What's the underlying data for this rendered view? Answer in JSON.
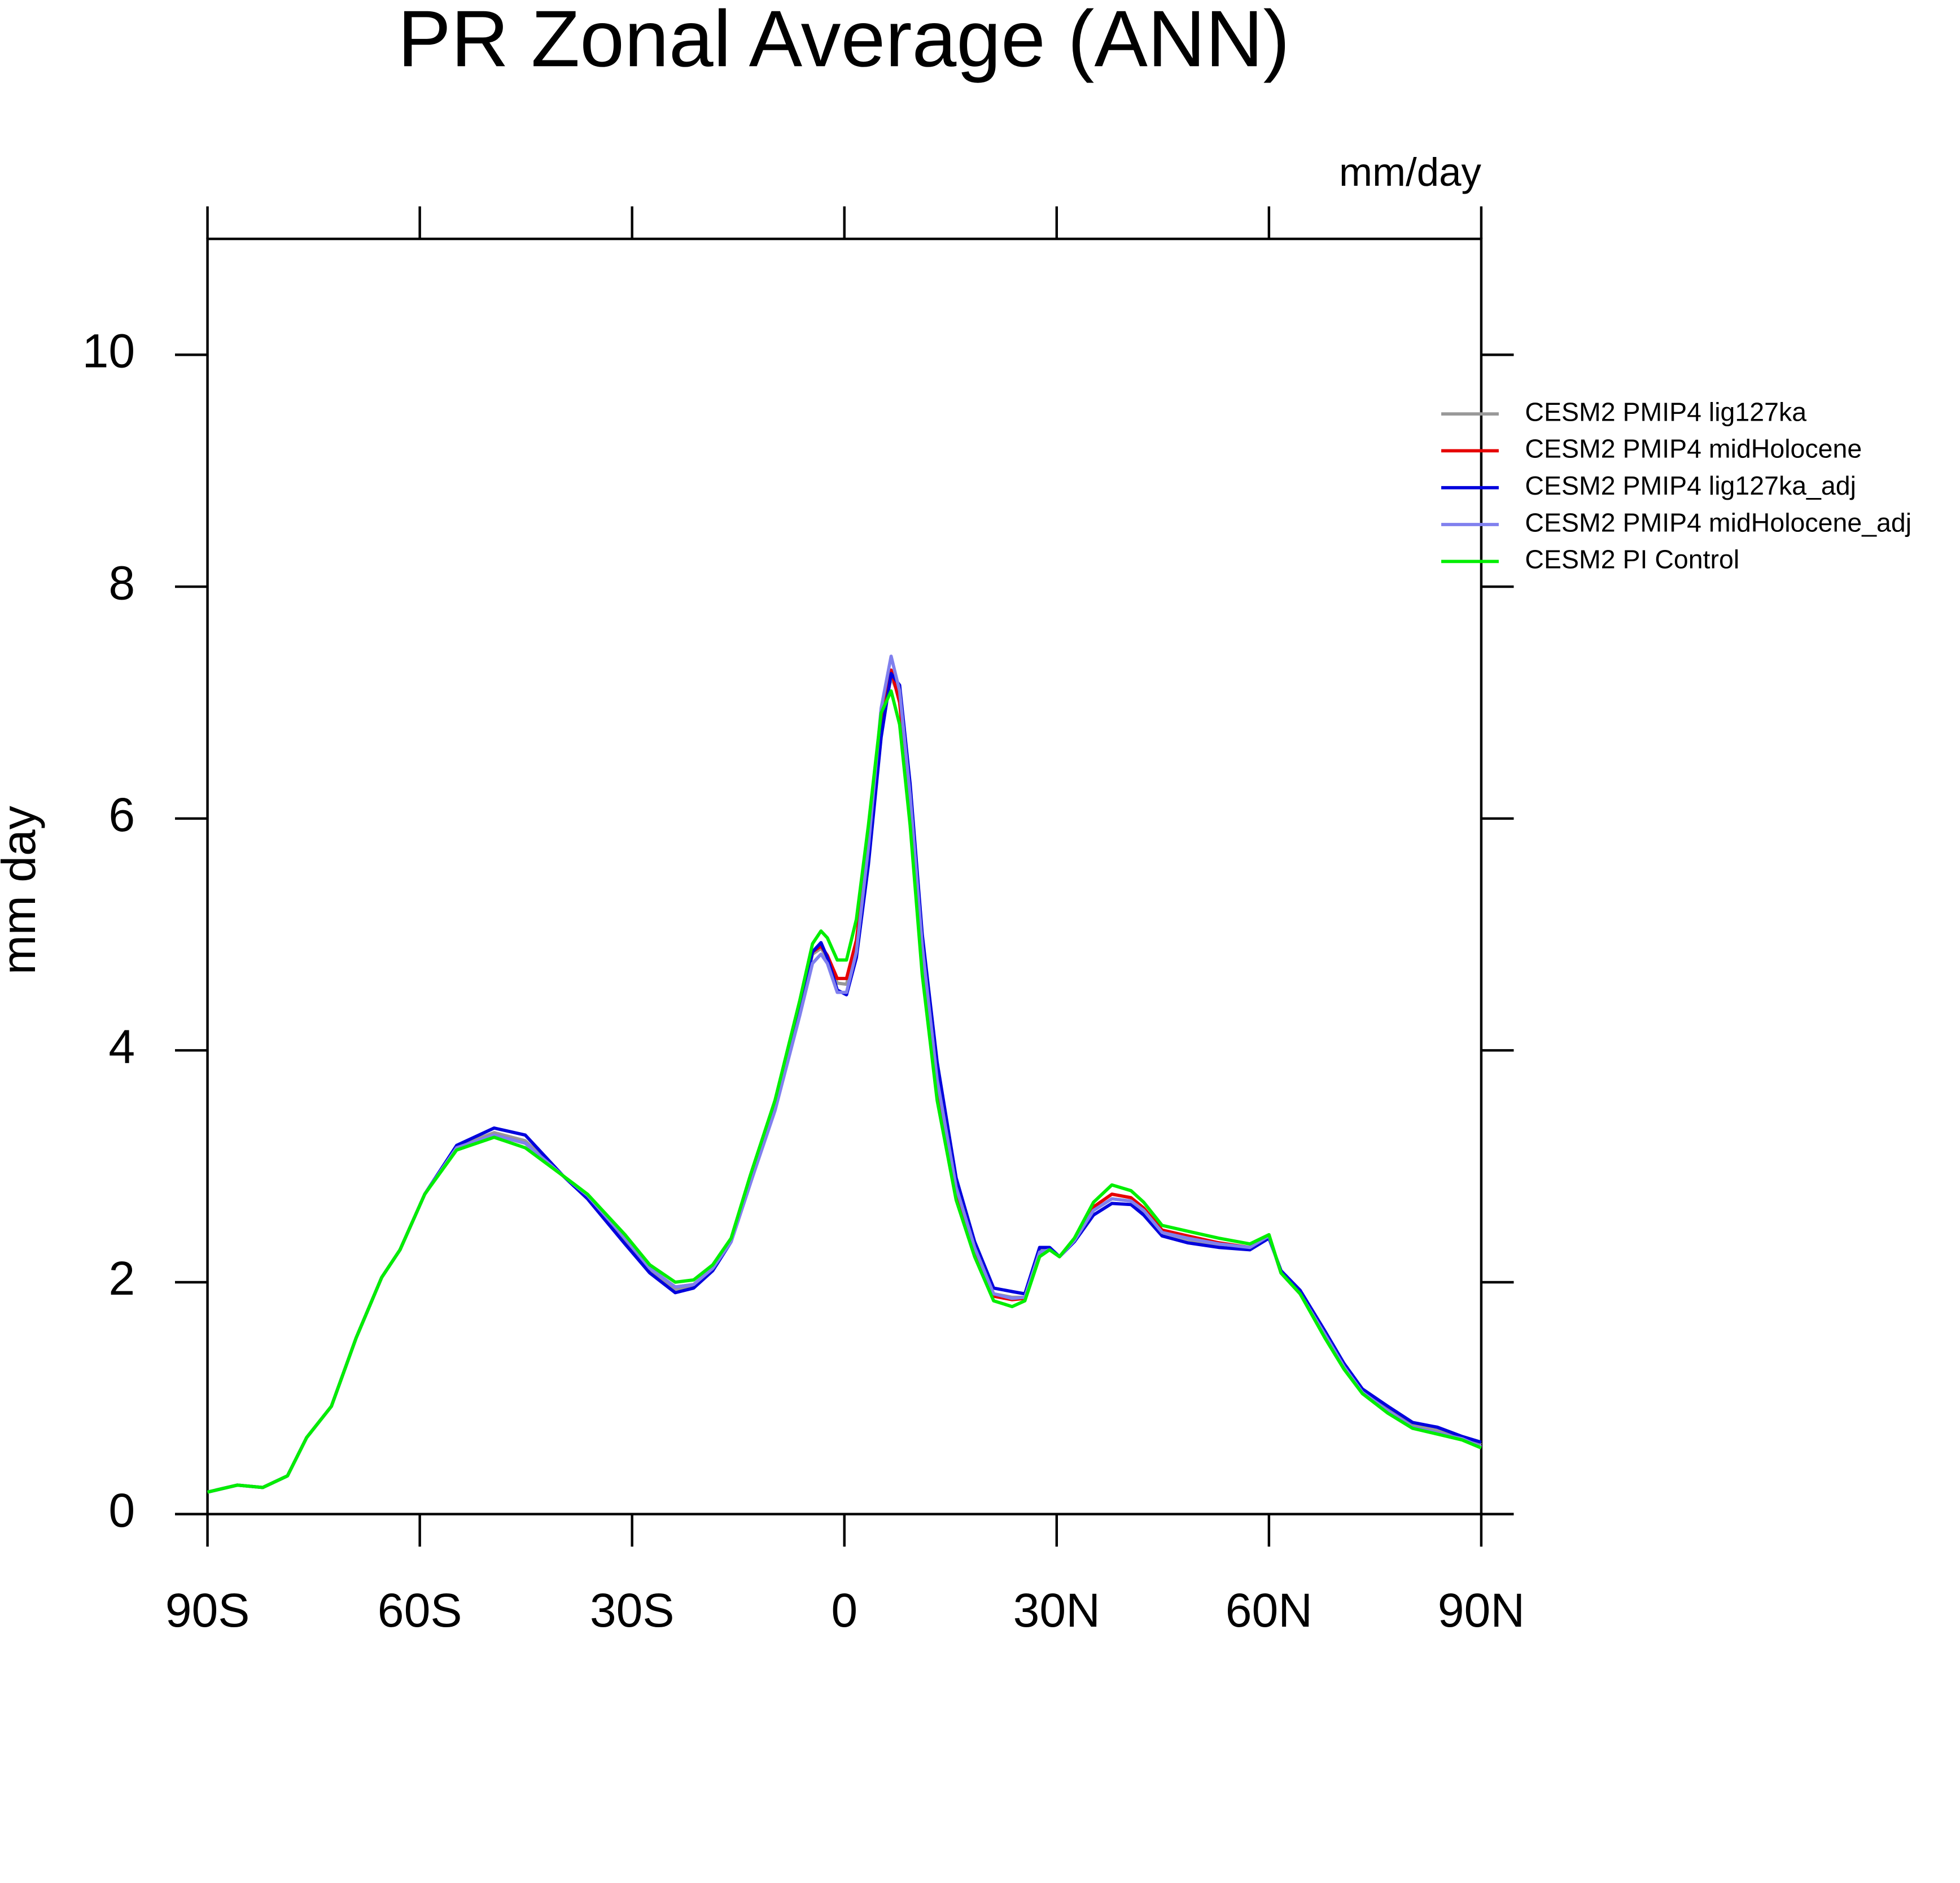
{
  "chart_data": {
    "type": "line",
    "title": "PR Zonal Average (ANN)",
    "units": "mm/day",
    "y_label": "mm day",
    "x": [
      -90,
      -85.8,
      -82.2,
      -78.7,
      -76,
      -72.5,
      -69,
      -65.4,
      -62.8,
      -59.3,
      -54.8,
      -49.5,
      -45.1,
      -39.8,
      -36.3,
      -31,
      -27.5,
      -23.9,
      -21.3,
      -18.6,
      -16,
      -13.3,
      -9.8,
      -6.3,
      -4.5,
      -3.3,
      -2.4,
      -1,
      0.3,
      1.7,
      3.4,
      5.2,
      6.6,
      7.8,
      9.3,
      11,
      13.1,
      15.8,
      18.4,
      21.1,
      23.7,
      25.5,
      27.6,
      29,
      30.4,
      32.5,
      35.2,
      37.8,
      40.5,
      42.3,
      44.9,
      48.5,
      52.9,
      57.3,
      60,
      61.7,
      64.4,
      67.9,
      70.6,
      73.2,
      76.8,
      80.3,
      83.8,
      87.3,
      90
    ],
    "series": [
      {
        "name": "CESM2 PMIP4 lig127ka",
        "color": "#999999",
        "values": [
          0.19,
          0.25,
          0.23,
          0.33,
          0.66,
          0.93,
          1.52,
          2.04,
          2.28,
          2.76,
          3.17,
          3.29,
          3.22,
          2.92,
          2.74,
          2.36,
          2.1,
          1.94,
          1.97,
          2.11,
          2.36,
          2.88,
          3.53,
          4.37,
          4.83,
          4.88,
          4.8,
          4.58,
          4.57,
          4.9,
          5.72,
          6.8,
          7.22,
          7.05,
          6.15,
          4.85,
          3.75,
          2.83,
          2.3,
          1.9,
          1.87,
          1.87,
          2.27,
          2.29,
          2.22,
          2.36,
          2.62,
          2.72,
          2.7,
          2.61,
          2.43,
          2.37,
          2.32,
          2.29,
          2.39,
          2.09,
          1.91,
          1.56,
          1.28,
          1.06,
          0.9,
          0.77,
          0.72,
          0.66,
          0.6
        ]
      },
      {
        "name": "CESM2 PMIP4 midHolocene",
        "color": "#e60000",
        "values": [
          0.19,
          0.25,
          0.23,
          0.33,
          0.66,
          0.93,
          1.52,
          2.04,
          2.28,
          2.76,
          3.16,
          3.27,
          3.2,
          2.92,
          2.75,
          2.38,
          2.12,
          1.96,
          1.98,
          2.12,
          2.37,
          2.9,
          3.55,
          4.4,
          4.85,
          4.9,
          4.82,
          4.62,
          4.62,
          4.95,
          5.8,
          6.85,
          7.28,
          7.0,
          6.1,
          4.8,
          3.7,
          2.8,
          2.28,
          1.88,
          1.85,
          1.86,
          2.25,
          2.28,
          2.22,
          2.37,
          2.65,
          2.76,
          2.73,
          2.64,
          2.45,
          2.4,
          2.34,
          2.3,
          2.4,
          2.08,
          1.9,
          1.54,
          1.27,
          1.05,
          0.89,
          0.75,
          0.7,
          0.65,
          0.58
        ]
      },
      {
        "name": "CESM2 PMIP4 lig127ka_adj",
        "color": "#0000dd",
        "values": [
          0.19,
          0.25,
          0.23,
          0.33,
          0.66,
          0.93,
          1.52,
          2.04,
          2.28,
          2.76,
          3.18,
          3.33,
          3.27,
          2.92,
          2.72,
          2.33,
          2.08,
          1.91,
          1.95,
          2.1,
          2.35,
          2.85,
          3.5,
          4.33,
          4.85,
          4.93,
          4.8,
          4.52,
          4.48,
          4.8,
          5.6,
          6.7,
          7.25,
          7.15,
          6.3,
          5.0,
          3.9,
          2.9,
          2.35,
          1.95,
          1.92,
          1.9,
          2.3,
          2.3,
          2.22,
          2.35,
          2.58,
          2.68,
          2.67,
          2.58,
          2.4,
          2.34,
          2.3,
          2.28,
          2.38,
          2.1,
          1.93,
          1.58,
          1.3,
          1.08,
          0.93,
          0.79,
          0.75,
          0.67,
          0.62
        ]
      },
      {
        "name": "CESM2 PMIP4 midHolocene_adj",
        "color": "#8080ee",
        "values": [
          0.19,
          0.25,
          0.23,
          0.33,
          0.66,
          0.93,
          1.52,
          2.04,
          2.28,
          2.76,
          3.16,
          3.27,
          3.2,
          2.92,
          2.75,
          2.38,
          2.12,
          1.96,
          1.98,
          2.12,
          2.35,
          2.85,
          3.48,
          4.3,
          4.75,
          4.83,
          4.75,
          4.5,
          4.5,
          4.85,
          5.75,
          6.95,
          7.4,
          7.1,
          6.2,
          4.9,
          3.75,
          2.82,
          2.3,
          1.9,
          1.86,
          1.87,
          2.26,
          2.28,
          2.22,
          2.36,
          2.62,
          2.72,
          2.7,
          2.62,
          2.43,
          2.38,
          2.33,
          2.3,
          2.4,
          2.08,
          1.9,
          1.55,
          1.27,
          1.05,
          0.89,
          0.75,
          0.7,
          0.65,
          0.58
        ]
      },
      {
        "name": "CESM2 PI Control",
        "color": "#00ee00",
        "values": [
          0.19,
          0.25,
          0.23,
          0.33,
          0.66,
          0.93,
          1.52,
          2.04,
          2.28,
          2.76,
          3.14,
          3.25,
          3.16,
          2.92,
          2.76,
          2.41,
          2.15,
          2.0,
          2.02,
          2.15,
          2.38,
          2.92,
          3.57,
          4.43,
          4.92,
          5.03,
          4.97,
          4.78,
          4.78,
          5.13,
          5.94,
          6.91,
          7.1,
          6.81,
          5.94,
          4.65,
          3.57,
          2.71,
          2.22,
          1.84,
          1.79,
          1.84,
          2.22,
          2.28,
          2.22,
          2.38,
          2.69,
          2.84,
          2.79,
          2.69,
          2.49,
          2.44,
          2.38,
          2.33,
          2.41,
          2.08,
          1.9,
          1.52,
          1.25,
          1.04,
          0.87,
          0.74,
          0.69,
          0.64,
          0.57
        ]
      }
    ],
    "xlim": [
      -90,
      90
    ],
    "xticks": [
      {
        "value": -90,
        "label": "90S"
      },
      {
        "value": -60,
        "label": "60S"
      },
      {
        "value": -30,
        "label": "30S"
      },
      0,
      {
        "value": 30,
        "label": "30N"
      },
      {
        "value": 60,
        "label": "60N"
      },
      {
        "value": 90,
        "label": "90N"
      }
    ],
    "ylim": [
      0,
      11
    ],
    "yticks": [
      0,
      2,
      4,
      6,
      8,
      10
    ],
    "legend": "right"
  }
}
